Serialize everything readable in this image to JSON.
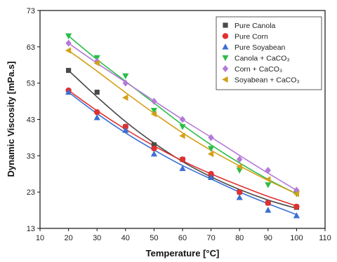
{
  "chart_data": {
    "type": "scatter",
    "xlabel": "Temperature [°C]",
    "ylabel": "Dynamic Viscosity [mPa.s]",
    "xlim": [
      10,
      110
    ],
    "ylim": [
      13,
      73
    ],
    "xticks": [
      10,
      20,
      30,
      40,
      50,
      60,
      70,
      80,
      90,
      100,
      110
    ],
    "yticks": [
      13,
      23,
      33,
      43,
      53,
      63,
      73
    ],
    "x": [
      20,
      30,
      40,
      50,
      60,
      70,
      80,
      90,
      100
    ],
    "legend_position": "top-right",
    "grid": false,
    "series": [
      {
        "name": "Pure Canola",
        "marker": "square",
        "color": "#4a4a4a",
        "values": [
          56.5,
          50.5,
          41.0,
          36.0,
          32.0,
          27.5,
          23.0,
          20.0,
          18.8
        ],
        "fit": [
          56.5,
          49.2,
          42.4,
          36.5,
          31.4,
          27.2,
          23.7,
          20.8,
          18.5
        ]
      },
      {
        "name": "Pure Corn",
        "marker": "circle",
        "color": "#e03030",
        "values": [
          51.0,
          45.0,
          41.0,
          35.0,
          32.0,
          28.0,
          23.0,
          20.0,
          19.0
        ],
        "fit": [
          51.0,
          45.4,
          40.3,
          35.7,
          31.6,
          28.0,
          24.8,
          21.8,
          19.2
        ]
      },
      {
        "name": "Pure Soyabean",
        "marker": "triangle-up",
        "color": "#3b6fd4",
        "values": [
          50.5,
          43.5,
          40.0,
          33.5,
          29.5,
          27.0,
          21.5,
          18.0,
          16.5
        ],
        "fit": [
          50.5,
          44.6,
          39.3,
          34.6,
          30.3,
          26.6,
          23.0,
          19.8,
          16.8
        ]
      },
      {
        "name": "Canola + CaCO₃",
        "marker": "triangle-down",
        "color": "#2bbd4a",
        "values": [
          66.0,
          60.0,
          55.0,
          45.5,
          41.0,
          35.0,
          29.0,
          25.0,
          22.5
        ],
        "fit": [
          66.0,
          59.5,
          53.5,
          47.5,
          41.5,
          36.0,
          31.0,
          26.5,
          22.5
        ]
      },
      {
        "name": "Corn + CaCO₃",
        "marker": "diamond",
        "color": "#b37ad6",
        "values": [
          64.0,
          59.0,
          53.0,
          48.0,
          43.0,
          38.0,
          32.0,
          29.0,
          23.5
        ],
        "fit": [
          64.0,
          58.5,
          53.3,
          48.1,
          43.0,
          38.1,
          33.1,
          28.2,
          23.5
        ]
      },
      {
        "name": "Soyabean + CaCO₃",
        "marker": "triangle-left",
        "color": "#d4a017",
        "values": [
          62.0,
          58.5,
          49.0,
          44.5,
          38.5,
          33.5,
          30.0,
          26.5,
          22.5
        ],
        "fit": [
          62.0,
          56.3,
          50.4,
          44.7,
          39.3,
          34.5,
          30.2,
          26.2,
          22.5
        ]
      }
    ]
  }
}
